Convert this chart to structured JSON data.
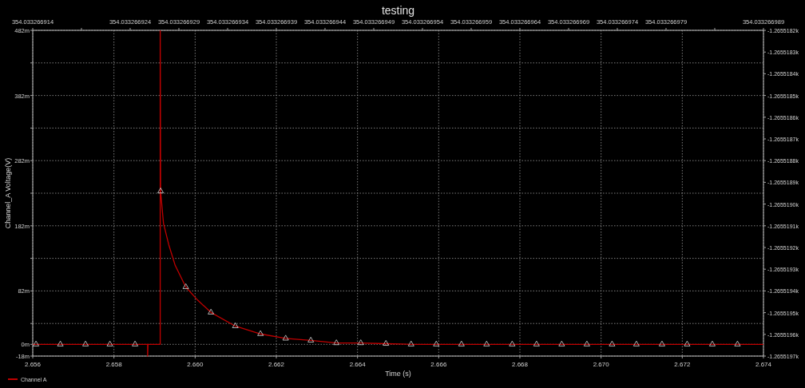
{
  "chart_data": {
    "type": "line",
    "title": "testing",
    "xlabel": "Time (s)",
    "ylabel": "Channel_A Voltage(V)",
    "xlim": [
      2.656,
      2.674
    ],
    "xticks": [
      2.656,
      2.658,
      {
        "value": 2.66,
        "label": "2.660"
      },
      2.662,
      2.664,
      2.666,
      2.668,
      {
        "value": 2.67,
        "label": "2.670"
      },
      2.672,
      2.674
    ],
    "ylim": [
      -18,
      482
    ],
    "yticks": [
      {
        "value": -18,
        "label": "-18m"
      },
      {
        "value": 0,
        "label": "0m"
      },
      {
        "value": 32,
        "label": null
      },
      {
        "value": 82,
        "label": "82m"
      },
      {
        "value": 132,
        "label": null
      },
      {
        "value": 182,
        "label": "182m"
      },
      {
        "value": 232,
        "label": null
      },
      {
        "value": 282,
        "label": "282m"
      },
      {
        "value": 332,
        "label": null
      },
      {
        "value": 382,
        "label": "382m"
      },
      {
        "value": 432,
        "label": null
      },
      {
        "value": 482,
        "label": "482m"
      }
    ],
    "y2lim": [
      -1265.5197,
      -1265.5182
    ],
    "y2ticks": [
      {
        "value": -1265.5197,
        "label": "-1.2655197k"
      },
      {
        "value": -1265.5196,
        "label": "-1.2655196k"
      },
      {
        "value": -1265.5195,
        "label": "-1.2655195k"
      },
      {
        "value": -1265.5194,
        "label": "-1.2655194k"
      },
      {
        "value": -1265.5193,
        "label": "-1.2655193k"
      },
      {
        "value": -1265.5192,
        "label": "-1.2655192k"
      },
      {
        "value": -1265.5191,
        "label": "-1.2655191k"
      },
      {
        "value": -1265.519,
        "label": "-1.2655190k"
      },
      {
        "value": -1265.5189,
        "label": "-1.2655189k"
      },
      {
        "value": -1265.5188,
        "label": "-1.2655188k"
      },
      {
        "value": -1265.5187,
        "label": "-1.2655187k"
      },
      {
        "value": -1265.5186,
        "label": "-1.2655186k"
      },
      {
        "value": -1265.5185,
        "label": "-1.2655185k"
      },
      {
        "value": -1265.5184,
        "label": "-1.2655184k"
      },
      {
        "value": -1265.5183,
        "label": "-1.2655183k"
      },
      {
        "value": -1265.5182,
        "label": "-1.2655182k"
      }
    ],
    "x2lim": [
      354.033266914,
      354.033266989
    ],
    "x2ticks": [
      {
        "value": 354.033266914,
        "label": "354.033266914"
      },
      {
        "value": 354.033266919,
        "label": null
      },
      {
        "value": 354.033266924,
        "label": "354.033266924"
      },
      {
        "value": 354.033266929,
        "label": "354.033266929"
      },
      {
        "value": 354.033266934,
        "label": "354.033266934"
      },
      {
        "value": 354.033266939,
        "label": "354.033266939"
      },
      {
        "value": 354.033266944,
        "label": "354.033266944"
      },
      {
        "value": 354.033266949,
        "label": "354.033266949"
      },
      {
        "value": 354.033266954,
        "label": "354.033266954"
      },
      {
        "value": 354.033266959,
        "label": "354.033266959"
      },
      {
        "value": 354.033266964,
        "label": "354.033266964"
      },
      {
        "value": 354.033266969,
        "label": "354.033266969"
      },
      {
        "value": 354.033266974,
        "label": "354.033266974"
      },
      {
        "value": 354.033266979,
        "label": "354.033266979"
      },
      {
        "value": 354.033266984,
        "label": null
      },
      {
        "value": 354.033266989,
        "label": "354.033266989"
      }
    ],
    "grid": true,
    "legend": "bottom left",
    "line_style": "solid",
    "series": [
      {
        "name": "Channel A",
        "color": "#c00000",
        "marker": "none",
        "x": [
          2.656,
          2.65883,
          2.65883,
          2.65884,
          2.65914,
          2.65914,
          2.65915,
          2.65922,
          2.65935,
          2.65951,
          2.65977,
          2.66006,
          2.66039,
          2.66099,
          2.66161,
          2.66223,
          2.66285,
          2.66348,
          2.66408,
          2.6647,
          2.66532,
          2.66594,
          2.674
        ],
        "values": [
          0,
          0,
          -18,
          0,
          0,
          482,
          235,
          186,
          153,
          121,
          88,
          68,
          49,
          28,
          16,
          9,
          6,
          2,
          2,
          1,
          0,
          0,
          0
        ]
      },
      {
        "type": "scatter",
        "color": "#d8d8d8",
        "marker": "triangle",
        "x": [
          2.65608,
          2.65668,
          2.6573,
          2.6579,
          2.65852,
          2.65915,
          2.65977,
          2.66039,
          2.66099,
          2.66161,
          2.66223,
          2.66285,
          2.66348,
          2.66408,
          2.6647,
          2.66532,
          2.66594,
          2.66656,
          2.66718,
          2.66781,
          2.66841,
          2.66903,
          2.66965,
          2.67027,
          2.67087,
          2.6715,
          2.67212,
          2.67274,
          2.67336
        ],
        "values": [
          0,
          0,
          0,
          0,
          0,
          235,
          88,
          49,
          28,
          16,
          9,
          6,
          2,
          2,
          1,
          0,
          0,
          0,
          0,
          0,
          0,
          0,
          0,
          0,
          0,
          0,
          0,
          0,
          0
        ]
      }
    ]
  }
}
